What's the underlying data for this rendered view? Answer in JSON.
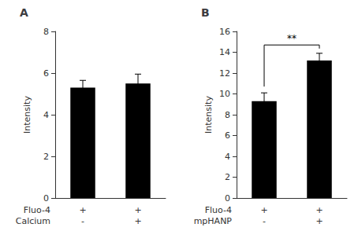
{
  "chart_data": [
    {
      "type": "bar",
      "title": "A",
      "ylabel": "Intensity",
      "row_labels": [
        {
          "name": "Fluo-4",
          "labels": [
            "+",
            "+"
          ]
        },
        {
          "name": "Calcium",
          "labels": [
            "-",
            "+"
          ]
        }
      ],
      "values": [
        5.3,
        5.5
      ],
      "errors": [
        0.35,
        0.45
      ],
      "color": "#000000",
      "ylim": [
        0,
        8
      ],
      "yticks": [
        0,
        2,
        4,
        6,
        8
      ],
      "grid": false
    },
    {
      "type": "bar",
      "title": "B",
      "ylabel": "Intensity",
      "row_labels": [
        {
          "name": "Fluo-4",
          "labels": [
            "+",
            "+"
          ]
        },
        {
          "name": "mpHANP",
          "labels": [
            "-",
            "+"
          ]
        }
      ],
      "values": [
        9.3,
        13.2
      ],
      "errors": [
        0.8,
        0.7
      ],
      "color": "#000000",
      "ylim": [
        0,
        16
      ],
      "yticks": [
        0,
        2,
        4,
        6,
        8,
        10,
        12,
        14,
        16
      ],
      "grid": false,
      "significance": {
        "label": "**",
        "y": 14.7,
        "text_y": 14.9
      }
    }
  ]
}
